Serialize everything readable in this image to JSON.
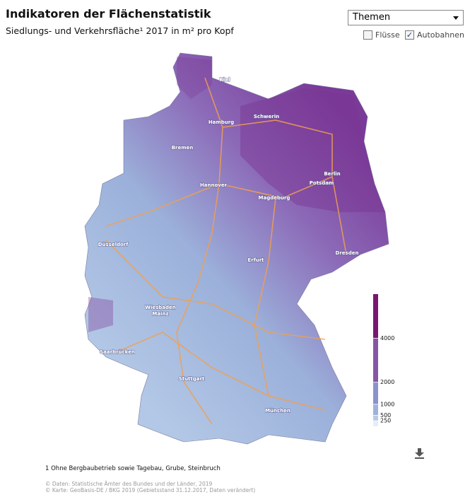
{
  "header": {
    "title": "Indikatoren der Flächenstatistik",
    "subtitle": "Siedlungs- und Verkehrsfläche¹ 2017 in m² pro Kopf"
  },
  "controls": {
    "dropdown": "Themen",
    "layers": [
      {
        "label": "Flüsse",
        "checked": false
      },
      {
        "label": "Autobahnen",
        "checked": true
      }
    ]
  },
  "cities": [
    "Kiel",
    "Hamburg",
    "Schwerin",
    "Bremen",
    "Berlin",
    "Potsdam",
    "Hannover",
    "Magdeburg",
    "Düsseldorf",
    "Erfurt",
    "Dresden",
    "Wiesbaden",
    "Mainz",
    "Saarbrücken",
    "Stuttgart",
    "München"
  ],
  "legend": {
    "lim": [
      0,
      6000
    ],
    "ticks": [
      250,
      500,
      1000,
      2000,
      4000
    ],
    "colors": [
      "#e6edf7",
      "#b8cbe6",
      "#9fb2dc",
      "#8c92cb",
      "#8656a6",
      "#7a1670"
    ]
  },
  "footnote": "1 Ohne Bergbaubetrieb sowie Tagebau, Grube, Steinbruch",
  "sources": [
    "© Daten: Statistische Ämter des Bundes und der Länder, 2019",
    "© Karte: GeoBasis-DE / BKG 2019 (Gebietsstand 31.12.2017, Daten verändert)"
  ]
}
